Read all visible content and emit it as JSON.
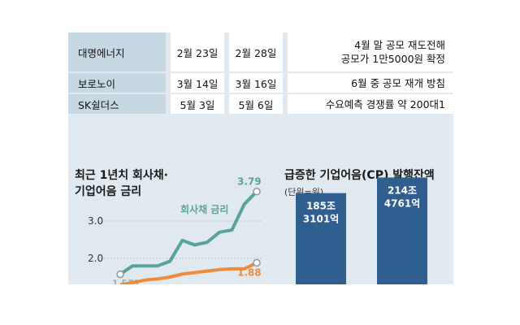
{
  "table": {
    "rows": [
      {
        "company": "대명에너지",
        "date1": "2월 23일",
        "date2": "2월 28일",
        "note_line1": "4월 말 공모 재도전해",
        "note_line2": "공모가 1만5000원 확정"
      },
      {
        "company": "보로노이",
        "date1": "3월 14일",
        "date2": "3월 16일",
        "note_line1": "6월 중 공모 재개 방침",
        "note_line2": ""
      },
      {
        "company": "SK쉴더스",
        "date1": "5월 3일",
        "date2": "5월 6일",
        "note_line1": "수요예측 경쟁률 약 200대1",
        "note_line2": ""
      }
    ]
  },
  "chart_data": [
    {
      "type": "line",
      "title_line1": "최근 1년치 회사채·",
      "title_line2": "기업어음 금리",
      "yticks": [
        "3.0",
        "2.0"
      ],
      "series": [
        {
          "name": "회사채 금리",
          "color": "#5aa39c",
          "values": [
            1.577,
            1.8,
            1.8,
            1.8,
            1.92,
            2.48,
            2.36,
            2.43,
            2.7,
            2.76,
            3.45,
            3.79
          ],
          "start_label": "1.577",
          "end_label": "3.79"
        },
        {
          "name": "",
          "color": "#f08a3c",
          "values": [
            1.3,
            1.35,
            1.42,
            1.45,
            1.5,
            1.58,
            1.62,
            1.66,
            1.7,
            1.72,
            1.72,
            1.88
          ],
          "start_label": "",
          "end_label": "1.88"
        }
      ]
    },
    {
      "type": "bar",
      "title": "급증한 기업어음(CP) 발행잔액",
      "unit": "(단위=원)",
      "bars": [
        {
          "label_line1": "185조",
          "label_line2": "3101억",
          "value": 185.3101
        },
        {
          "label_line1": "214조",
          "label_line2": "4761억",
          "value": 214.4761
        }
      ],
      "color": "#2f5f8f"
    }
  ]
}
